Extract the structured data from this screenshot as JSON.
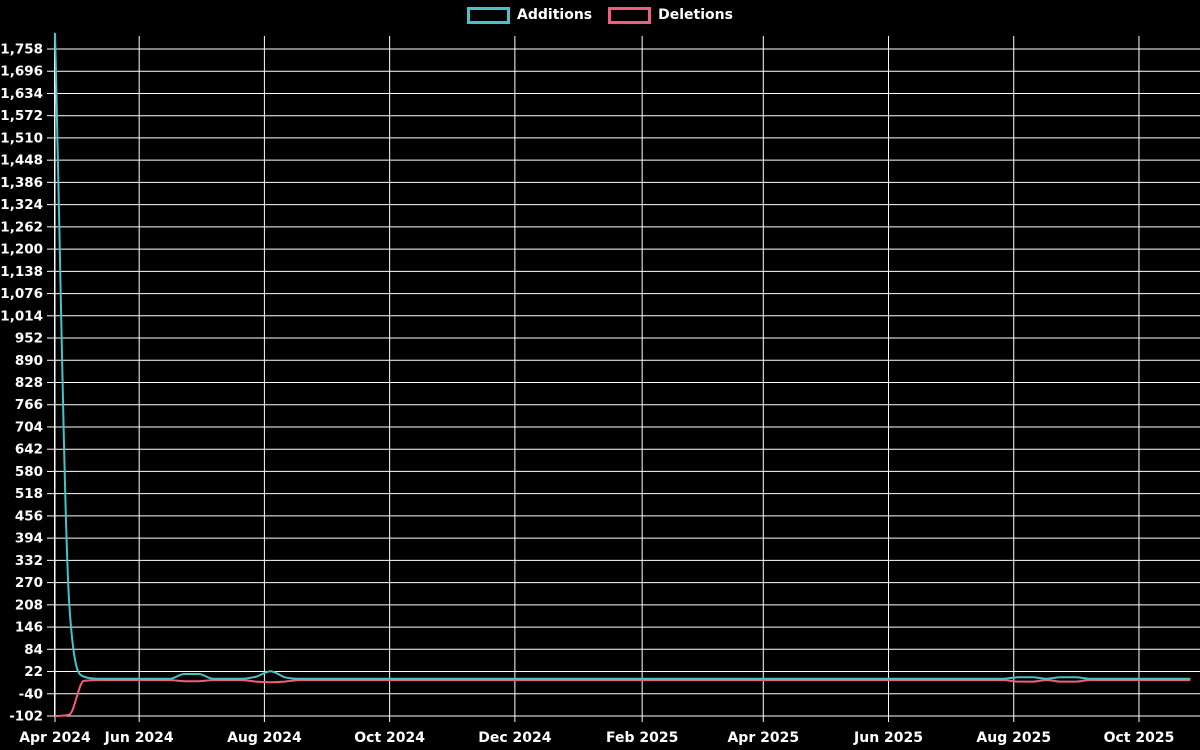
{
  "legend": {
    "items": [
      {
        "label": "Additions",
        "color": "#45c4c7"
      },
      {
        "label": "Deletions",
        "color": "#f25c7d"
      }
    ]
  },
  "chart_data": {
    "type": "line",
    "title": "",
    "xlabel": "",
    "ylabel": "",
    "legend_position": "top-center",
    "grid": true,
    "colors": {
      "background": "#000000",
      "gridline": "#ffffff",
      "tick_text": "#ffffff",
      "additions": "#45c4c7",
      "deletions": "#f25c7d"
    },
    "y_axis": {
      "min": -102,
      "max": 1758,
      "tick_step": 62,
      "tick_labels": [
        "1,758",
        "1,696",
        "1,634",
        "1,572",
        "1,510",
        "1,448",
        "1,386",
        "1,324",
        "1,262",
        "1,200",
        "1,138",
        "1,076",
        "1,014",
        "952",
        "890",
        "828",
        "766",
        "704",
        "642",
        "580",
        "518",
        "456",
        "394",
        "332",
        "270",
        "208",
        "146",
        "84",
        "22",
        "-40",
        "-102"
      ]
    },
    "x_axis": {
      "ticks": [
        {
          "label": "Apr 2024",
          "date": "2024-04-21"
        },
        {
          "label": "Jun 2024",
          "date": "2024-06-01"
        },
        {
          "label": "Aug 2024",
          "date": "2024-08-01"
        },
        {
          "label": "Oct 2024",
          "date": "2024-10-01"
        },
        {
          "label": "Dec 2024",
          "date": "2024-12-01"
        },
        {
          "label": "Feb 2025",
          "date": "2025-02-01"
        },
        {
          "label": "Apr 2025",
          "date": "2025-04-01"
        },
        {
          "label": "Jun 2025",
          "date": "2025-06-01"
        },
        {
          "label": "Aug 2025",
          "date": "2025-08-01"
        },
        {
          "label": "Oct 2025",
          "date": "2025-10-01"
        }
      ]
    },
    "weeks_start": "2024-04-21",
    "weeks_end": "2025-10-26",
    "interval_days": 7,
    "series": [
      {
        "name": "Additions",
        "color": "#45c4c7",
        "baseline": 2,
        "exceptions": {
          "2024-04-21": 1803,
          "2024-04-28": 205,
          "2024-05-05": 8,
          "2024-06-23": 15,
          "2024-06-30": 15,
          "2024-07-28": 8,
          "2024-08-04": 23,
          "2024-08-11": 6,
          "2025-08-03": 6,
          "2025-08-10": 6,
          "2025-08-24": 6,
          "2025-08-31": 6
        }
      },
      {
        "name": "Deletions",
        "color": "#f25c7d",
        "baseline": -2,
        "exceptions": {
          "2024-04-21": -102,
          "2024-04-28": -98,
          "2024-05-05": -4,
          "2024-06-23": -5,
          "2024-06-30": -5,
          "2024-07-28": -6,
          "2024-08-04": -8,
          "2024-08-11": -6,
          "2025-08-03": -6,
          "2025-08-10": -6,
          "2025-08-24": -6,
          "2025-08-31": -6
        }
      }
    ]
  }
}
